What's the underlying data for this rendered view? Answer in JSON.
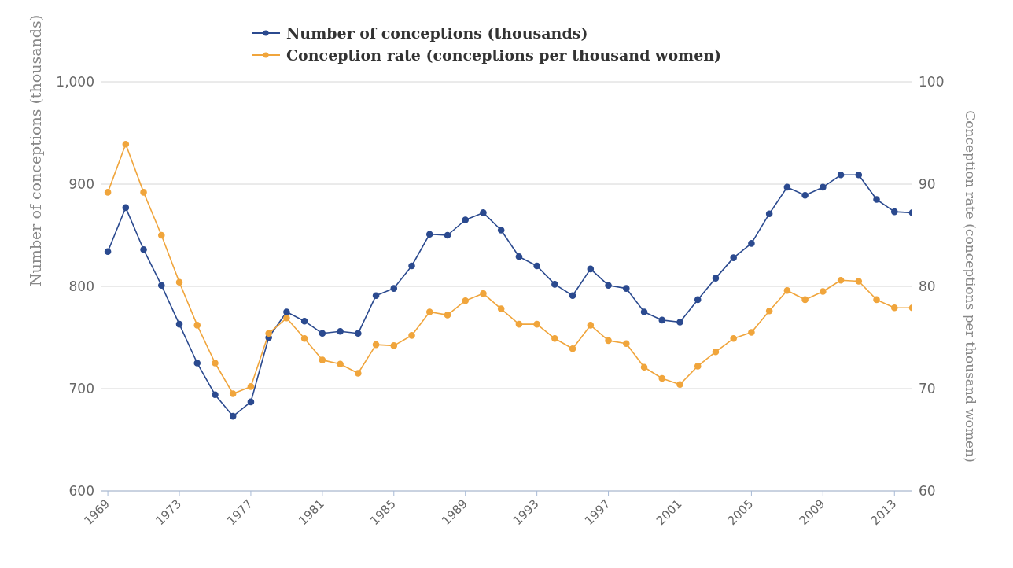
{
  "chart_data": {
    "type": "line",
    "ylabel": "Number of conceptions (thousands)",
    "y2label": "Conception rate (conceptions per thousand women)",
    "x": [
      1969,
      1970,
      1971,
      1972,
      1973,
      1974,
      1975,
      1976,
      1977,
      1978,
      1979,
      1980,
      1981,
      1982,
      1983,
      1984,
      1985,
      1986,
      1987,
      1988,
      1989,
      1990,
      1991,
      1992,
      1993,
      1994,
      1995,
      1996,
      1997,
      1998,
      1999,
      2000,
      2001,
      2002,
      2003,
      2004,
      2005,
      2006,
      2007,
      2008,
      2009,
      2010,
      2011,
      2012,
      2013,
      2014
    ],
    "xlim": [
      1968.6,
      2014
    ],
    "xticks": [
      1969,
      1973,
      1977,
      1981,
      1985,
      1989,
      1993,
      1997,
      2001,
      2005,
      2009,
      2013
    ],
    "ylim": [
      600,
      1000
    ],
    "yticks": [
      600,
      700,
      800,
      900,
      {
        "value": 1000,
        "label": "1,000"
      }
    ],
    "y2lim": [
      60,
      100
    ],
    "y2ticks": [
      60,
      70,
      80,
      90,
      100
    ],
    "grid": "y",
    "legend": "top",
    "marker": "circle",
    "line_style": "solid",
    "series": [
      {
        "name": "Number of conceptions (thousands)",
        "color": "#2b4a8f",
        "values": [
          834,
          877,
          836,
          801,
          763,
          725,
          694,
          673,
          687,
          750,
          775,
          766,
          754,
          756,
          754,
          791,
          798,
          820,
          851,
          850,
          865,
          872,
          855,
          829,
          820,
          802,
          791,
          817,
          801,
          798,
          775,
          767,
          765,
          787,
          808,
          828,
          842,
          871,
          897,
          889,
          897,
          909,
          909,
          885,
          873,
          872
        ]
      },
      {
        "name": "Conception rate (conceptions per thousand women)",
        "color": "#f0a53c",
        "axis": "y2",
        "values": [
          89.2,
          93.9,
          89.2,
          85.0,
          80.4,
          76.2,
          72.5,
          69.5,
          70.2,
          75.4,
          76.9,
          74.9,
          72.8,
          72.4,
          71.5,
          74.3,
          74.2,
          75.2,
          77.5,
          77.2,
          78.6,
          79.3,
          77.8,
          76.3,
          76.3,
          74.9,
          73.9,
          76.2,
          74.7,
          74.4,
          72.1,
          71.0,
          70.4,
          72.2,
          73.6,
          74.9,
          75.5,
          77.6,
          79.6,
          78.7,
          79.5,
          80.6,
          80.5,
          78.7,
          77.9,
          77.9
        ]
      }
    ]
  }
}
